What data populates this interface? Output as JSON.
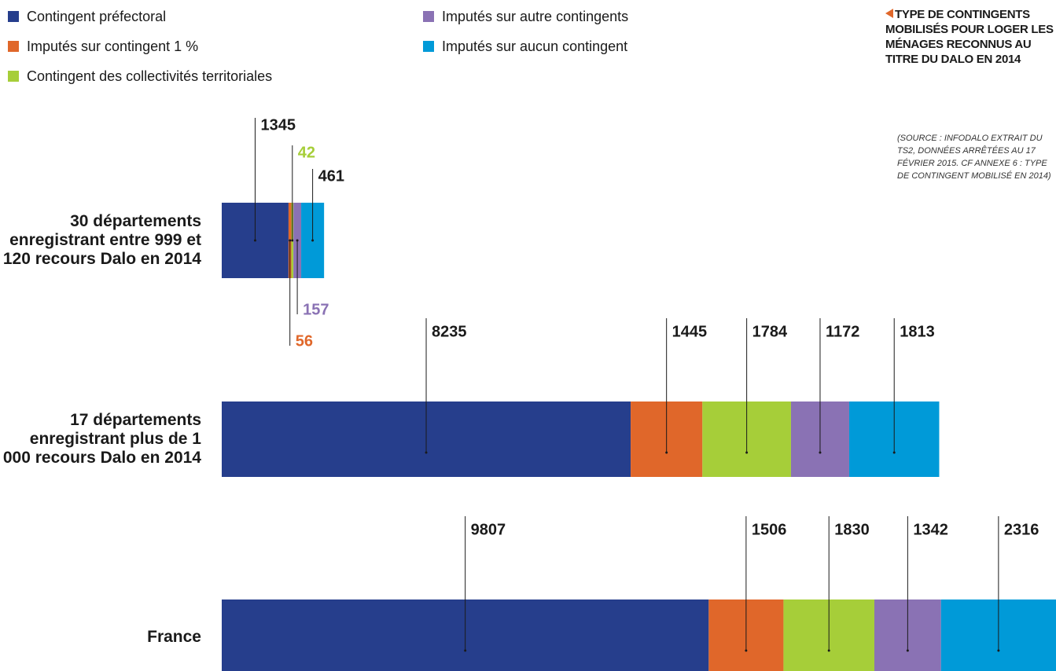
{
  "chart_data": {
    "type": "stacked-bar-horizontal",
    "title": "TYPE DE CONTINGENTS MOBILISÉS POUR LOGER LES MÉNAGES RECONNUS AU TITRE DU DALO EN 2014",
    "source": "(SOURCE : INFODALO EXTRAIT DU TS2, DONNÉES ARRÊTÉES AU 17 FÉVRIER 2015. CF ANNEXE 6 : TYPE DE CONTINGENT MOBILISÉ EN 2014)",
    "categories": [
      "30 départements enregistrant entre 999 et 120 recours Dalo en 2014",
      "17 départements enregistrant plus de 1 000 recours Dalo en 2014",
      "France"
    ],
    "series": [
      {
        "name": "Contingent préfectoral",
        "color": "#263e8c",
        "values": [
          1345,
          8235,
          9807
        ]
      },
      {
        "name": "Imputés sur contingent 1 %",
        "color": "#e0672a",
        "values": [
          56,
          1445,
          1506
        ]
      },
      {
        "name": "Contingent des collectivités territoriales",
        "color": "#a6ce39",
        "values": [
          42,
          1784,
          1830
        ]
      },
      {
        "name": "Imputés sur autre contingents",
        "color": "#8a72b4",
        "values": [
          157,
          1172,
          1342
        ]
      },
      {
        "name": "Imputés sur aucun contingent",
        "color": "#009ad8",
        "values": [
          461,
          1813,
          2316
        ]
      }
    ]
  }
}
